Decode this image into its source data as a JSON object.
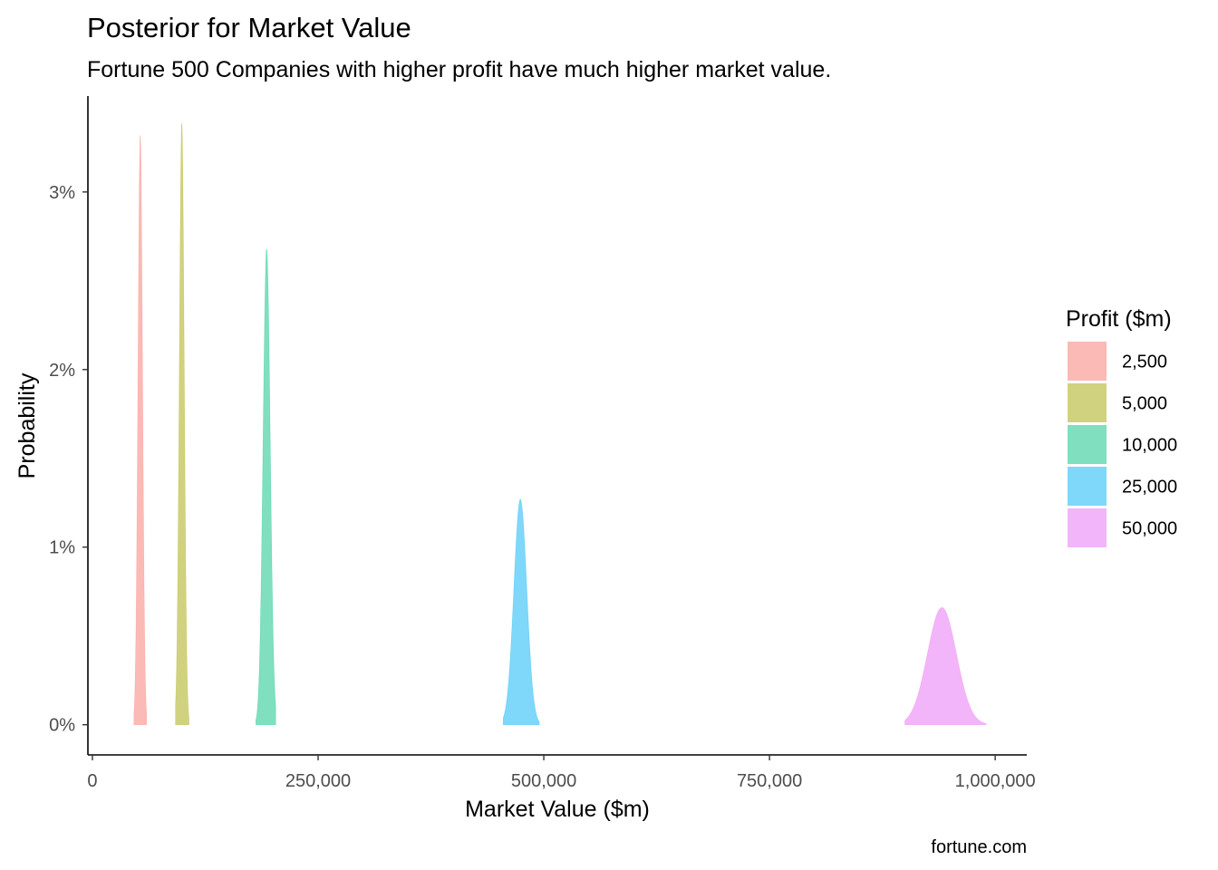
{
  "chart_data": {
    "type": "area",
    "title": "Posterior for Market Value",
    "subtitle": "Fortune 500 Companies with higher profit have much higher market value.",
    "xlabel": "Market Value ($m)",
    "ylabel": "Probability",
    "caption": "fortune.com",
    "xlim": [
      -5000,
      1035000
    ],
    "ylim": [
      -0.0017,
      0.0354
    ],
    "x_ticks": [
      0,
      250000,
      500000,
      750000,
      1000000
    ],
    "x_tick_labels": [
      "0",
      "250,000",
      "500,000",
      "750,000",
      "1,000,000"
    ],
    "y_ticks": [
      0,
      0.01,
      0.02,
      0.03
    ],
    "y_tick_labels": [
      "0%",
      "1%",
      "2%",
      "3%"
    ],
    "grid": false,
    "legend": {
      "title": "Profit ($m)",
      "position": "right"
    },
    "series": [
      {
        "name": "2,500",
        "color": "#F8766D",
        "mean": 53000,
        "peak": 0.0332,
        "x_min": 46000,
        "x_max": 60000
      },
      {
        "name": "5,000",
        "color": "#A3A500",
        "mean": 99000,
        "peak": 0.0339,
        "x_min": 92000,
        "x_max": 107000
      },
      {
        "name": "10,000",
        "color": "#00BF7D",
        "mean": 193000,
        "peak": 0.0268,
        "x_min": 181000,
        "x_max": 203000
      },
      {
        "name": "25,000",
        "color": "#00B0F6",
        "mean": 474000,
        "peak": 0.0127,
        "x_min": 455000,
        "x_max": 495000
      },
      {
        "name": "50,000",
        "color": "#E76BF3",
        "mean": 941000,
        "peak": 0.0066,
        "x_min": 900000,
        "x_max": 990000
      }
    ]
  }
}
